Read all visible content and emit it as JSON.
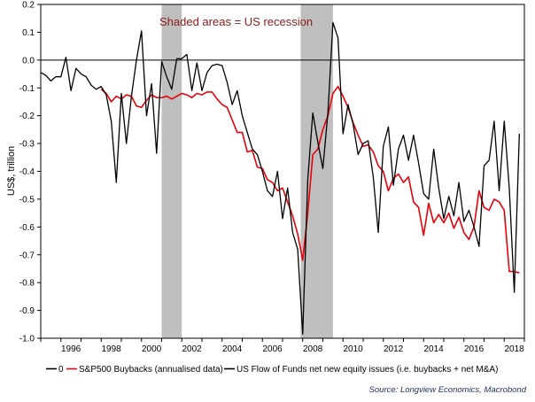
{
  "chart_data": {
    "type": "line",
    "ylabel": "US$, trillion",
    "ylim": [
      -1.0,
      0.2
    ],
    "yticks": [
      "0.2",
      "0.1",
      "0.0",
      "-0.1",
      "-0.2",
      "-0.3",
      "-0.4",
      "-0.5",
      "-0.6",
      "-0.7",
      "-0.8",
      "-0.9",
      "-1.0"
    ],
    "xlim": [
      1995.0,
      2019.0
    ],
    "xticks": [
      "1996",
      "1998",
      "2000",
      "2002",
      "2004",
      "2006",
      "2008",
      "2010",
      "2012",
      "2014",
      "2016",
      "2018"
    ],
    "annotation": "Shaded areas = US recession",
    "recessions": [
      [
        2001.0,
        2002.0
      ],
      [
        2007.9,
        2009.5
      ]
    ],
    "legend_position": "bottom",
    "source": "Source: Longview Economics, Macrobond",
    "colors": {
      "zero": "#000000",
      "buybacks": "#e8000b",
      "flow": "#000000",
      "recession": "#bfbfbf",
      "annotation": "#8b1a1a",
      "source": "#1f2f5c"
    },
    "series": [
      {
        "name": "0",
        "x": [
          1995.0,
          2019.0
        ],
        "y": [
          0.0,
          0.0
        ]
      },
      {
        "name": "S&P500 Buybacks (annualised data)",
        "x": [
          1998.0,
          1998.25,
          1998.5,
          1998.75,
          1999.0,
          1999.25,
          1999.5,
          1999.75,
          2000.0,
          2000.25,
          2000.5,
          2000.75,
          2001.0,
          2001.25,
          2001.5,
          2001.75,
          2002.0,
          2002.25,
          2002.5,
          2002.75,
          2003.0,
          2003.25,
          2003.5,
          2003.75,
          2004.0,
          2004.25,
          2004.5,
          2004.75,
          2005.0,
          2005.25,
          2005.5,
          2005.75,
          2006.0,
          2006.25,
          2006.5,
          2006.75,
          2007.0,
          2007.25,
          2007.5,
          2007.75,
          2008.0,
          2008.25,
          2008.5,
          2008.75,
          2009.0,
          2009.25,
          2009.5,
          2009.75,
          2010.0,
          2010.25,
          2010.5,
          2010.75,
          2011.0,
          2011.25,
          2011.5,
          2011.75,
          2012.0,
          2012.25,
          2012.5,
          2012.75,
          2013.0,
          2013.25,
          2013.5,
          2013.75,
          2014.0,
          2014.25,
          2014.5,
          2014.75,
          2015.0,
          2015.25,
          2015.5,
          2015.75,
          2016.0,
          2016.25,
          2016.5,
          2016.75,
          2017.0,
          2017.25,
          2017.5,
          2017.75,
          2018.0,
          2018.25,
          2018.5,
          2018.75
        ],
        "y": [
          -0.105,
          -0.12,
          -0.15,
          -0.13,
          -0.14,
          -0.125,
          -0.13,
          -0.165,
          -0.17,
          -0.145,
          -0.125,
          -0.135,
          -0.135,
          -0.13,
          -0.14,
          -0.13,
          -0.12,
          -0.125,
          -0.135,
          -0.12,
          -0.125,
          -0.115,
          -0.115,
          -0.14,
          -0.16,
          -0.17,
          -0.215,
          -0.26,
          -0.26,
          -0.33,
          -0.325,
          -0.385,
          -0.39,
          -0.43,
          -0.44,
          -0.47,
          -0.46,
          -0.51,
          -0.56,
          -0.625,
          -0.72,
          -0.55,
          -0.34,
          -0.32,
          -0.25,
          -0.2,
          -0.12,
          -0.095,
          -0.13,
          -0.17,
          -0.225,
          -0.27,
          -0.31,
          -0.305,
          -0.33,
          -0.38,
          -0.4,
          -0.47,
          -0.425,
          -0.41,
          -0.44,
          -0.42,
          -0.51,
          -0.53,
          -0.63,
          -0.515,
          -0.585,
          -0.555,
          -0.585,
          -0.55,
          -0.605,
          -0.565,
          -0.62,
          -0.645,
          -0.6,
          -0.47,
          -0.53,
          -0.54,
          -0.5,
          -0.51,
          -0.54,
          -0.76,
          -0.76,
          -0.765
        ]
      },
      {
        "name": "US Flow of Funds net new equity issues (i.e. buybacks + net M&A)",
        "x": [
          1995.0,
          1995.25,
          1995.5,
          1995.75,
          1996.0,
          1996.25,
          1996.5,
          1996.75,
          1997.0,
          1997.25,
          1997.5,
          1997.75,
          1998.0,
          1998.25,
          1998.5,
          1998.75,
          1999.0,
          1999.25,
          1999.5,
          1999.75,
          2000.0,
          2000.25,
          2000.5,
          2000.75,
          2001.0,
          2001.25,
          2001.5,
          2001.75,
          2002.0,
          2002.25,
          2002.5,
          2002.75,
          2003.0,
          2003.25,
          2003.5,
          2003.75,
          2004.0,
          2004.25,
          2004.5,
          2004.75,
          2005.0,
          2005.25,
          2005.5,
          2005.75,
          2006.0,
          2006.25,
          2006.5,
          2006.75,
          2007.0,
          2007.25,
          2007.5,
          2007.75,
          2008.0,
          2008.25,
          2008.5,
          2008.75,
          2009.0,
          2009.25,
          2009.5,
          2009.75,
          2010.0,
          2010.25,
          2010.5,
          2010.75,
          2011.0,
          2011.25,
          2011.5,
          2011.75,
          2012.0,
          2012.25,
          2012.5,
          2012.75,
          2013.0,
          2013.25,
          2013.5,
          2013.75,
          2014.0,
          2014.25,
          2014.5,
          2014.75,
          2015.0,
          2015.25,
          2015.5,
          2015.75,
          2016.0,
          2016.25,
          2016.5,
          2016.75,
          2017.0,
          2017.25,
          2017.5,
          2017.75,
          2018.0,
          2018.25,
          2018.5,
          2018.75
        ],
        "y": [
          -0.045,
          -0.055,
          -0.075,
          -0.06,
          -0.06,
          0.01,
          -0.11,
          -0.03,
          -0.05,
          -0.06,
          -0.09,
          -0.105,
          -0.095,
          -0.125,
          -0.22,
          -0.44,
          -0.12,
          -0.3,
          -0.13,
          0.0,
          0.105,
          -0.2,
          -0.085,
          -0.335,
          -0.005,
          -0.06,
          -0.105,
          0.005,
          0.005,
          0.02,
          -0.11,
          -0.01,
          -0.11,
          -0.045,
          -0.02,
          -0.015,
          -0.02,
          -0.08,
          -0.16,
          -0.11,
          -0.2,
          -0.26,
          -0.32,
          -0.34,
          -0.4,
          -0.47,
          -0.49,
          -0.4,
          -0.57,
          -0.46,
          -0.62,
          -0.68,
          -0.985,
          -0.43,
          -0.19,
          -0.295,
          -0.39,
          -0.19,
          0.135,
          0.08,
          -0.265,
          -0.16,
          -0.23,
          -0.34,
          -0.3,
          -0.29,
          -0.42,
          -0.62,
          -0.31,
          -0.24,
          -0.45,
          -0.32,
          -0.27,
          -0.36,
          -0.27,
          -0.37,
          -0.48,
          -0.5,
          -0.32,
          -0.46,
          -0.57,
          -0.49,
          -0.56,
          -0.44,
          -0.58,
          -0.54,
          -0.6,
          -0.67,
          -0.38,
          -0.36,
          -0.22,
          -0.47,
          -0.22,
          -0.46,
          -0.835,
          -0.265
        ]
      }
    ]
  }
}
